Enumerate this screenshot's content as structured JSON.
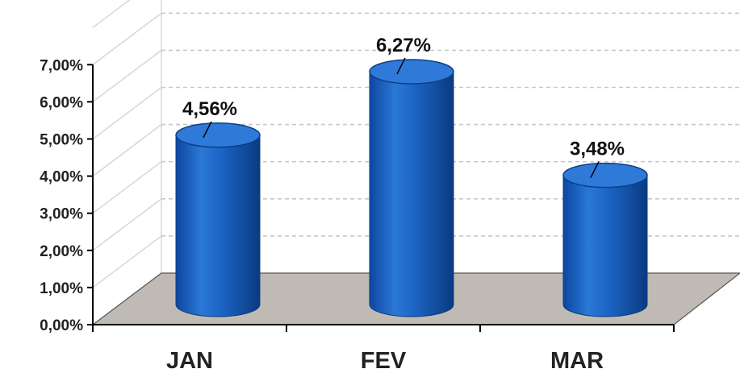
{
  "chart_data": {
    "type": "bar",
    "style": "3d-cylinder",
    "categories": [
      "JAN",
      "FEV",
      "MAR"
    ],
    "values": [
      4.56,
      6.27,
      3.48
    ],
    "data_labels": [
      "4,56%",
      "6,27%",
      "3,48%"
    ],
    "ylim": [
      0,
      7
    ],
    "yticks": [
      0,
      1,
      2,
      3,
      4,
      5,
      6,
      7
    ],
    "ytick_labels": [
      "0,00%",
      "1,00%",
      "2,00%",
      "3,00%",
      "4,00%",
      "5,00%",
      "6,00%",
      "7,00%"
    ],
    "title": "",
    "xlabel": "",
    "ylabel": "",
    "grid": true,
    "legend": "none",
    "colors": {
      "bar": "#1f63c6",
      "bar_dark": "#0b3e86",
      "bar_top": "#2f7ad8",
      "floor": "#bfbbb4",
      "grid": "#c8c8c8",
      "axis": "#000000"
    }
  }
}
